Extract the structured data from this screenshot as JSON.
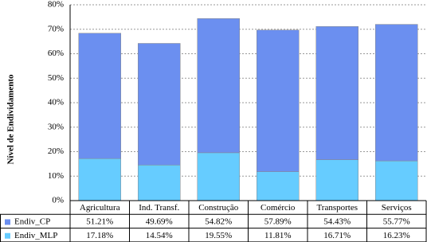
{
  "chart_data": {
    "type": "stacked_bar",
    "y_label": "Nível de Endividamento",
    "categories": [
      "Agricultura",
      "Ind. Transf.",
      "Construção",
      "Comércio",
      "Transportes",
      "Serviços"
    ],
    "series": [
      {
        "name": "Endiv_CP",
        "color": "#6b8ff0",
        "values": [
          51.21,
          49.69,
          54.82,
          57.89,
          54.43,
          55.77
        ],
        "value_labels": [
          "51.21%",
          "49.69%",
          "54.82%",
          "57.89%",
          "54.43%",
          "55.77%"
        ]
      },
      {
        "name": "Endiv_MLP",
        "color": "#66ccff",
        "values": [
          17.18,
          14.54,
          19.55,
          11.81,
          16.71,
          16.23
        ],
        "value_labels": [
          "17.18%",
          "14.54%",
          "19.55%",
          "11.81%",
          "16.71%",
          "16.23%"
        ]
      }
    ],
    "ylim": [
      0,
      80
    ],
    "yticks": [
      {
        "value": 0,
        "label": "0%"
      },
      {
        "value": 10,
        "label": "10%"
      },
      {
        "value": 20,
        "label": "20%"
      },
      {
        "value": 30,
        "label": "30%"
      },
      {
        "value": 40,
        "label": "40%"
      },
      {
        "value": 50,
        "label": "50%"
      },
      {
        "value": 60,
        "label": "60%"
      },
      {
        "value": 70,
        "label": "70%"
      },
      {
        "value": 80,
        "label": "80%"
      }
    ],
    "grid": true
  }
}
